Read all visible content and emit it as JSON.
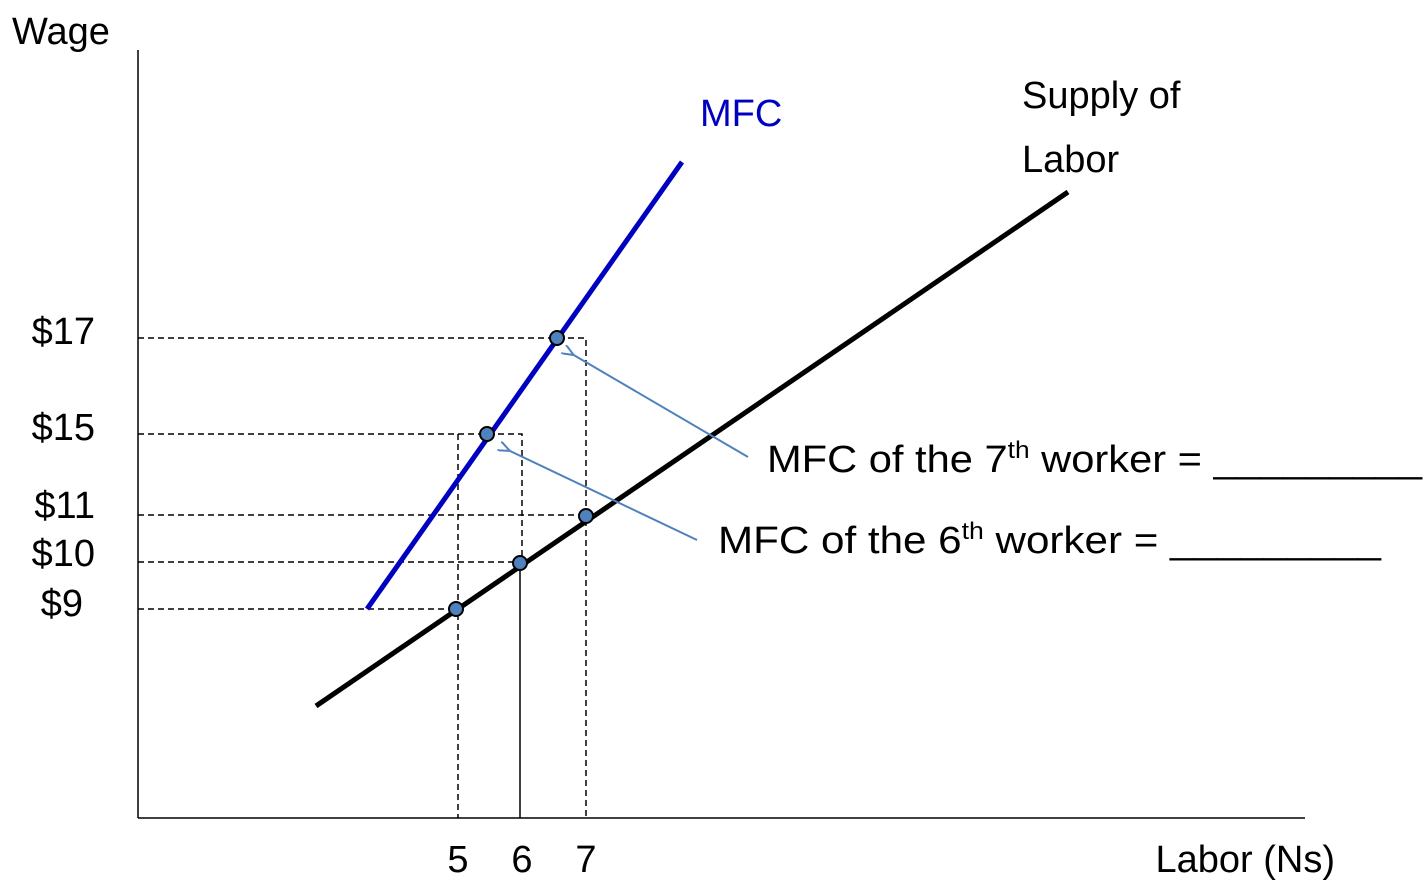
{
  "axes": {
    "y_label": "Wage",
    "x_label": "Labor (Ns)",
    "y_ticks": [
      "$17",
      "$15",
      "$11",
      "$10",
      "$9"
    ],
    "x_ticks": [
      "5",
      "6",
      "7"
    ]
  },
  "curves": {
    "mfc": "MFC",
    "supply": [
      "Supply of",
      "Labor"
    ]
  },
  "annotations": [
    {
      "prefix": "MFC of the 7",
      "sup": "th",
      "suffix": " worker = _________"
    },
    {
      "prefix": "MFC of the 6",
      "sup": "th",
      "suffix": " worker = _________"
    }
  ]
}
